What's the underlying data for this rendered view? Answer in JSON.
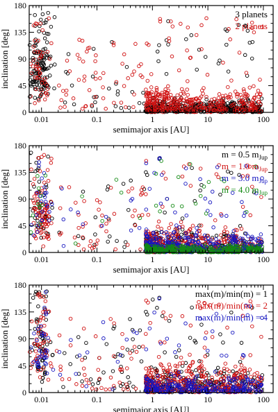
{
  "chart_data": [
    {
      "type": "scatter",
      "xlabel": "semimajor axis  [AU]",
      "ylabel": "inclination  [deg]",
      "xscale": "log",
      "xlim": [
        0.006,
        150
      ],
      "ylim": [
        0,
        180
      ],
      "xticks": [
        "0.01",
        "0.1",
        "1",
        "10",
        "100"
      ],
      "yticks": [
        "0",
        "45",
        "90",
        "135",
        "180"
      ],
      "legend_position": "top-right",
      "series": [
        {
          "name": "3 planets",
          "color": "#000000"
        },
        {
          "name": "2 planets",
          "color": "#d01010"
        }
      ]
    },
    {
      "type": "scatter",
      "xlabel": "semimajor axis  [AU]",
      "ylabel": "inclination  [deg]",
      "xscale": "log",
      "xlim": [
        0.006,
        150
      ],
      "ylim": [
        0,
        180
      ],
      "xticks": [
        "0.01",
        "0.1",
        "1",
        "10",
        "100"
      ],
      "yticks": [
        "0",
        "45",
        "90",
        "135",
        "180"
      ],
      "legend_position": "top-right",
      "series": [
        {
          "name": "m = 0.5 m",
          "sub": "Jup",
          "color": "#000000"
        },
        {
          "name": "m = 1.0 m",
          "sub": "Jup",
          "color": "#d01010"
        },
        {
          "name": "m = 3.0 m",
          "sub": "Jup",
          "color": "#1515c0"
        },
        {
          "name": "m = 4.0 m",
          "sub": "Jup",
          "color": "#138a13"
        }
      ]
    },
    {
      "type": "scatter",
      "xlabel": "semimajor axis  [AU]",
      "ylabel": "inclination  [deg]",
      "xscale": "log",
      "xlim": [
        0.006,
        150
      ],
      "ylim": [
        0,
        180
      ],
      "xticks": [
        "0.01",
        "0.1",
        "1",
        "10",
        "100"
      ],
      "yticks": [
        "0",
        "45",
        "90",
        "135",
        "180"
      ],
      "legend_position": "top-right",
      "series": [
        {
          "name": "max(m)/min(m) = 1",
          "color": "#000000"
        },
        {
          "name": "max(m)/min(m) = 2",
          "color": "#d01010"
        },
        {
          "name": "max(m)/min(m) = 4",
          "color": "#1515c0"
        }
      ]
    }
  ]
}
